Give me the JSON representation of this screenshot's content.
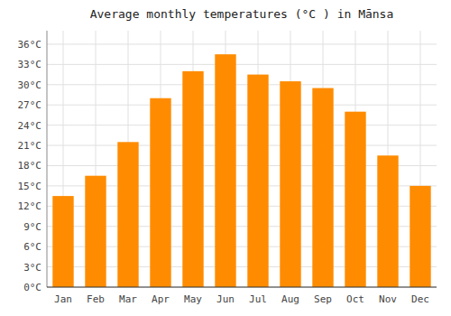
{
  "chart_data": {
    "type": "bar",
    "title": "Average monthly temperatures (°C ) in Mānsa",
    "categories": [
      "Jan",
      "Feb",
      "Mar",
      "Apr",
      "May",
      "Jun",
      "Jul",
      "Aug",
      "Sep",
      "Oct",
      "Nov",
      "Dec"
    ],
    "values": [
      13.5,
      16.5,
      21.5,
      28.0,
      32.0,
      34.5,
      31.5,
      30.5,
      29.5,
      26.0,
      19.5,
      15.0
    ],
    "color": "#FF8C00",
    "ylim": [
      0,
      38
    ],
    "yticks": [
      {
        "value": 0,
        "label": "0°C"
      },
      {
        "value": 3,
        "label": "3°C"
      },
      {
        "value": 6,
        "label": "6°C"
      },
      {
        "value": 9,
        "label": "9°C"
      },
      {
        "value": 12,
        "label": "12°C"
      },
      {
        "value": 15,
        "label": "15°C"
      },
      {
        "value": 18,
        "label": "18°C"
      },
      {
        "value": 21,
        "label": "21°C"
      },
      {
        "value": 24,
        "label": "24°C"
      },
      {
        "value": 27,
        "label": "27°C"
      },
      {
        "value": 30,
        "label": "30°C"
      },
      {
        "value": 33,
        "label": "33°C"
      },
      {
        "value": 36,
        "label": "36°C"
      }
    ],
    "grid": true
  }
}
